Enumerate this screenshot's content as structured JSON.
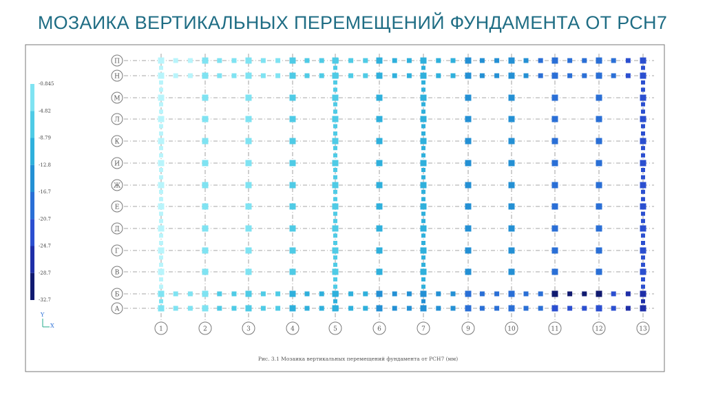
{
  "header": {
    "title": "МОЗАИКА ВЕРТИКАЛЬНЫХ ПЕРЕМЕЩЕНИЙ ФУНДАМЕНТА ОТ РСН7"
  },
  "legend": {
    "values": [
      "-0.845",
      "-4.82",
      "-8.79",
      "-12.8",
      "-16.7",
      "-20.7",
      "-24.7",
      "-28.7",
      "-32.7"
    ]
  },
  "grid": {
    "rows": [
      "П",
      "Н",
      "М",
      "Л",
      "К",
      "И",
      "Ж",
      "Е",
      "Д",
      "Г",
      "В",
      "Б",
      "А"
    ],
    "columns": [
      "1",
      "2",
      "3",
      "4",
      "5",
      "6",
      "7",
      "9",
      "10",
      "11",
      "12",
      "13"
    ]
  },
  "axes": {
    "y": "Y",
    "x": "X"
  },
  "caption": "Рис. 3.1 Мозаика вертикальных перемещений фундамента от РСН7 (мм)"
}
